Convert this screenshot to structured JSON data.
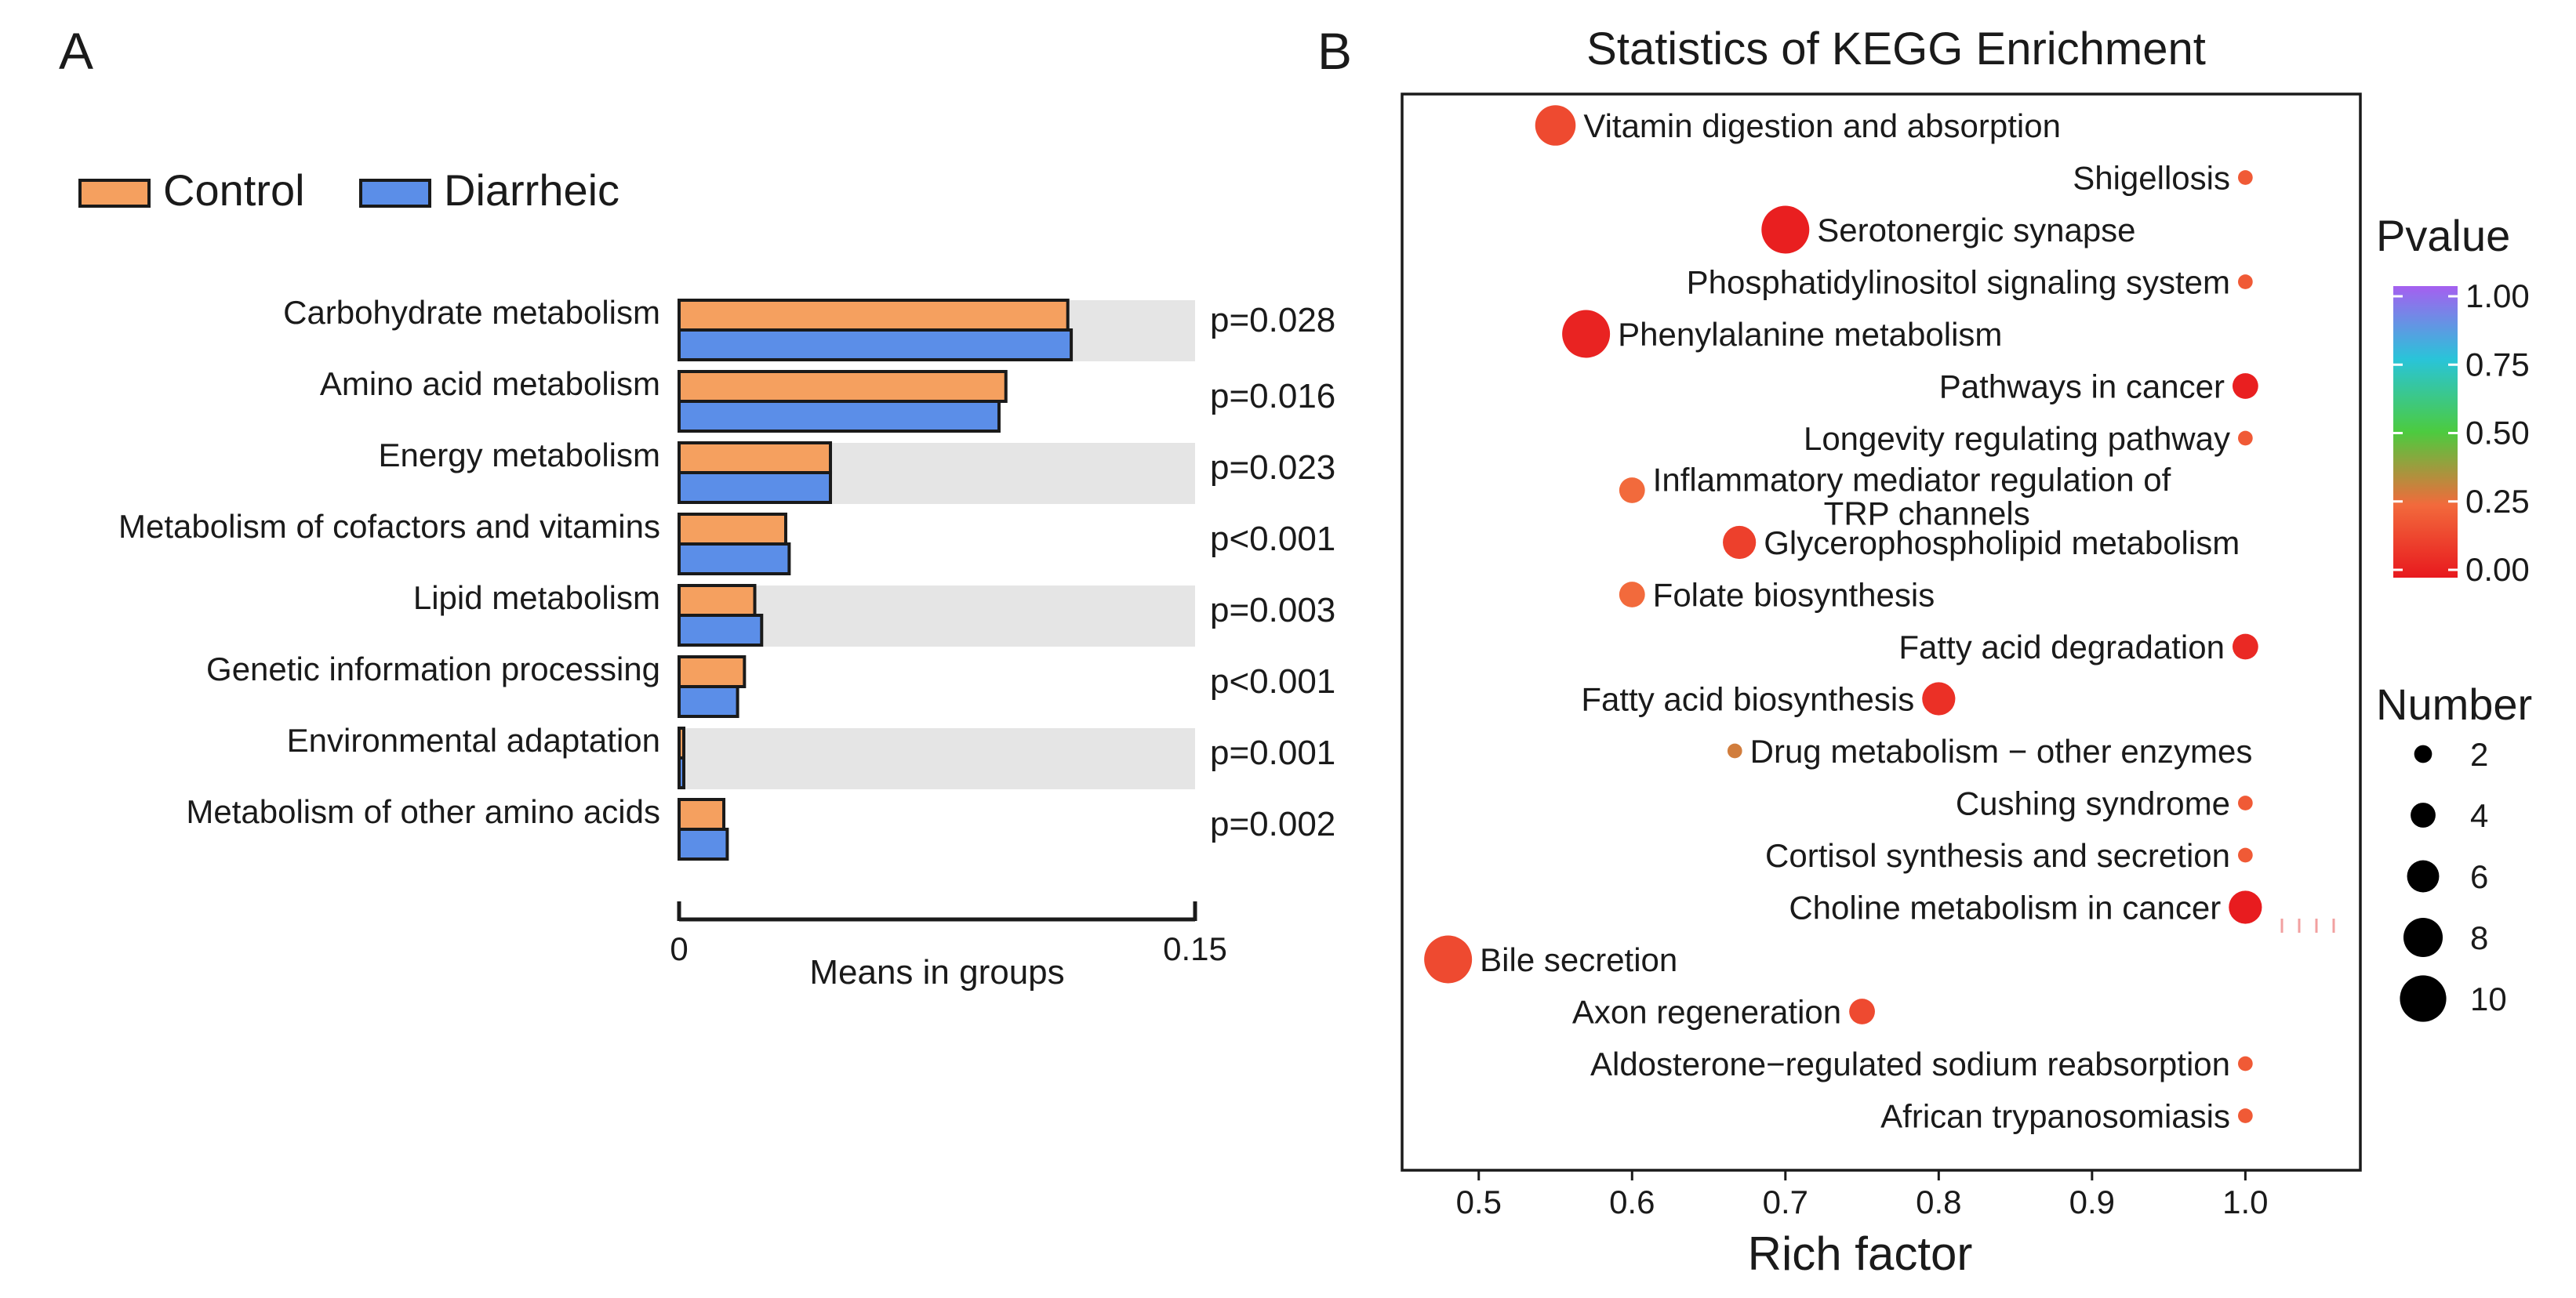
{
  "panel_labels": {
    "a": "A",
    "b": "B"
  },
  "chart_data": [
    {
      "type": "bar",
      "orientation": "horizontal",
      "panel": "A",
      "categories": [
        "Carbohydrate metabolism",
        "Amino acid metabolism",
        "Energy metabolism",
        "Metabolism of cofactors and vitamins",
        "Lipid metabolism",
        "Genetic information processing",
        "Environmental adaptation",
        "Metabolism of other amino acids"
      ],
      "series": [
        {
          "name": "Control",
          "color": "#F5A05F",
          "values": [
            0.113,
            0.095,
            0.044,
            0.031,
            0.022,
            0.019,
            0.001,
            0.013
          ]
        },
        {
          "name": "Diarrheic",
          "color": "#5B8EE8",
          "values": [
            0.114,
            0.093,
            0.044,
            0.032,
            0.024,
            0.017,
            0.001,
            0.014
          ]
        }
      ],
      "pvalues": [
        "p=0.028",
        "p=0.016",
        "p=0.023",
        "p<0.001",
        "p=0.003",
        "p<0.001",
        "p=0.001",
        "p=0.002"
      ],
      "xlabel": "Means in groups",
      "xlim": [
        0,
        0.15
      ],
      "x_tick_labels": [
        "0",
        "0.15"
      ],
      "legend_position": "top-left"
    },
    {
      "type": "scatter",
      "panel": "B",
      "title": "Statistics of KEGG Enrichment",
      "xlabel": "Rich factor",
      "xlim": [
        0.45,
        1.075
      ],
      "x_ticks": [
        0.5,
        0.6,
        0.7,
        0.8,
        0.9,
        1.0
      ],
      "x_tick_labels": [
        "0.5",
        "0.6",
        "0.7",
        "0.8",
        "0.9",
        "1.0"
      ],
      "points": [
        {
          "term": "Vitamin digestion and absorption",
          "x": 0.55,
          "number": 8,
          "pvalue": 0.15,
          "label_side": "right"
        },
        {
          "term": "Shigellosis",
          "x": 1.0,
          "number": 1,
          "pvalue": 0.2,
          "label_side": "left"
        },
        {
          "term": "Serotonergic synapse",
          "x": 0.7,
          "number": 10,
          "pvalue": 0.02,
          "label_side": "right"
        },
        {
          "term": "Phosphatidylinositol signaling system",
          "x": 1.0,
          "number": 1,
          "pvalue": 0.2,
          "label_side": "left"
        },
        {
          "term": "Phenylalanine metabolism",
          "x": 0.57,
          "number": 10,
          "pvalue": 0.03,
          "label_side": "right"
        },
        {
          "term": "Pathways in cancer",
          "x": 1.0,
          "number": 4,
          "pvalue": 0.02,
          "label_side": "left"
        },
        {
          "term": "Longevity regulating pathway",
          "x": 1.0,
          "number": 1,
          "pvalue": 0.2,
          "label_side": "left"
        },
        {
          "term": "Inflammatory mediator regulation of TRP channels",
          "x": 0.6,
          "number": 4,
          "pvalue": 0.25,
          "label_side": "right"
        },
        {
          "term": "Glycerophospholipid metabolism",
          "x": 0.67,
          "number": 6,
          "pvalue": 0.12,
          "label_side": "right"
        },
        {
          "term": "Folate biosynthesis",
          "x": 0.6,
          "number": 4,
          "pvalue": 0.25,
          "label_side": "right"
        },
        {
          "term": "Fatty acid degradation",
          "x": 1.0,
          "number": 4,
          "pvalue": 0.05,
          "label_side": "left"
        },
        {
          "term": "Fatty acid biosynthesis",
          "x": 0.8,
          "number": 6,
          "pvalue": 0.07,
          "label_side": "left"
        },
        {
          "term": "Drug metabolism − other enzymes",
          "x": 0.667,
          "number": 1,
          "pvalue": 0.3,
          "label_side": "right"
        },
        {
          "term": "Cushing syndrome",
          "x": 1.0,
          "number": 1,
          "pvalue": 0.2,
          "label_side": "left"
        },
        {
          "term": "Cortisol synthesis and secretion",
          "x": 1.0,
          "number": 1,
          "pvalue": 0.2,
          "label_side": "left"
        },
        {
          "term": "Choline metabolism in cancer",
          "x": 1.0,
          "number": 6,
          "pvalue": 0.01,
          "label_side": "left"
        },
        {
          "term": "Bile secretion",
          "x": 0.48,
          "number": 10,
          "pvalue": 0.15,
          "label_side": "right"
        },
        {
          "term": "Axon regeneration",
          "x": 0.75,
          "number": 4,
          "pvalue": 0.15,
          "label_side": "left"
        },
        {
          "term": "Aldosterone−regulated sodium reabsorption",
          "x": 1.0,
          "number": 1,
          "pvalue": 0.2,
          "label_side": "left"
        },
        {
          "term": "African trypanosomiasis",
          "x": 1.0,
          "number": 1,
          "pvalue": 0.2,
          "label_side": "left"
        }
      ],
      "color_legend": {
        "title": "Pvalue",
        "range": [
          0,
          1
        ],
        "tick_labels": [
          "1.00",
          "0.75",
          "0.50",
          "0.25",
          "0.00"
        ],
        "colors": [
          "#E8191E",
          "#F26A3C",
          "#4CCB3F",
          "#29C4D9",
          "#A55FF0"
        ]
      },
      "size_legend": {
        "title": "Number",
        "values": [
          2,
          4,
          6,
          8,
          10
        ]
      }
    }
  ]
}
